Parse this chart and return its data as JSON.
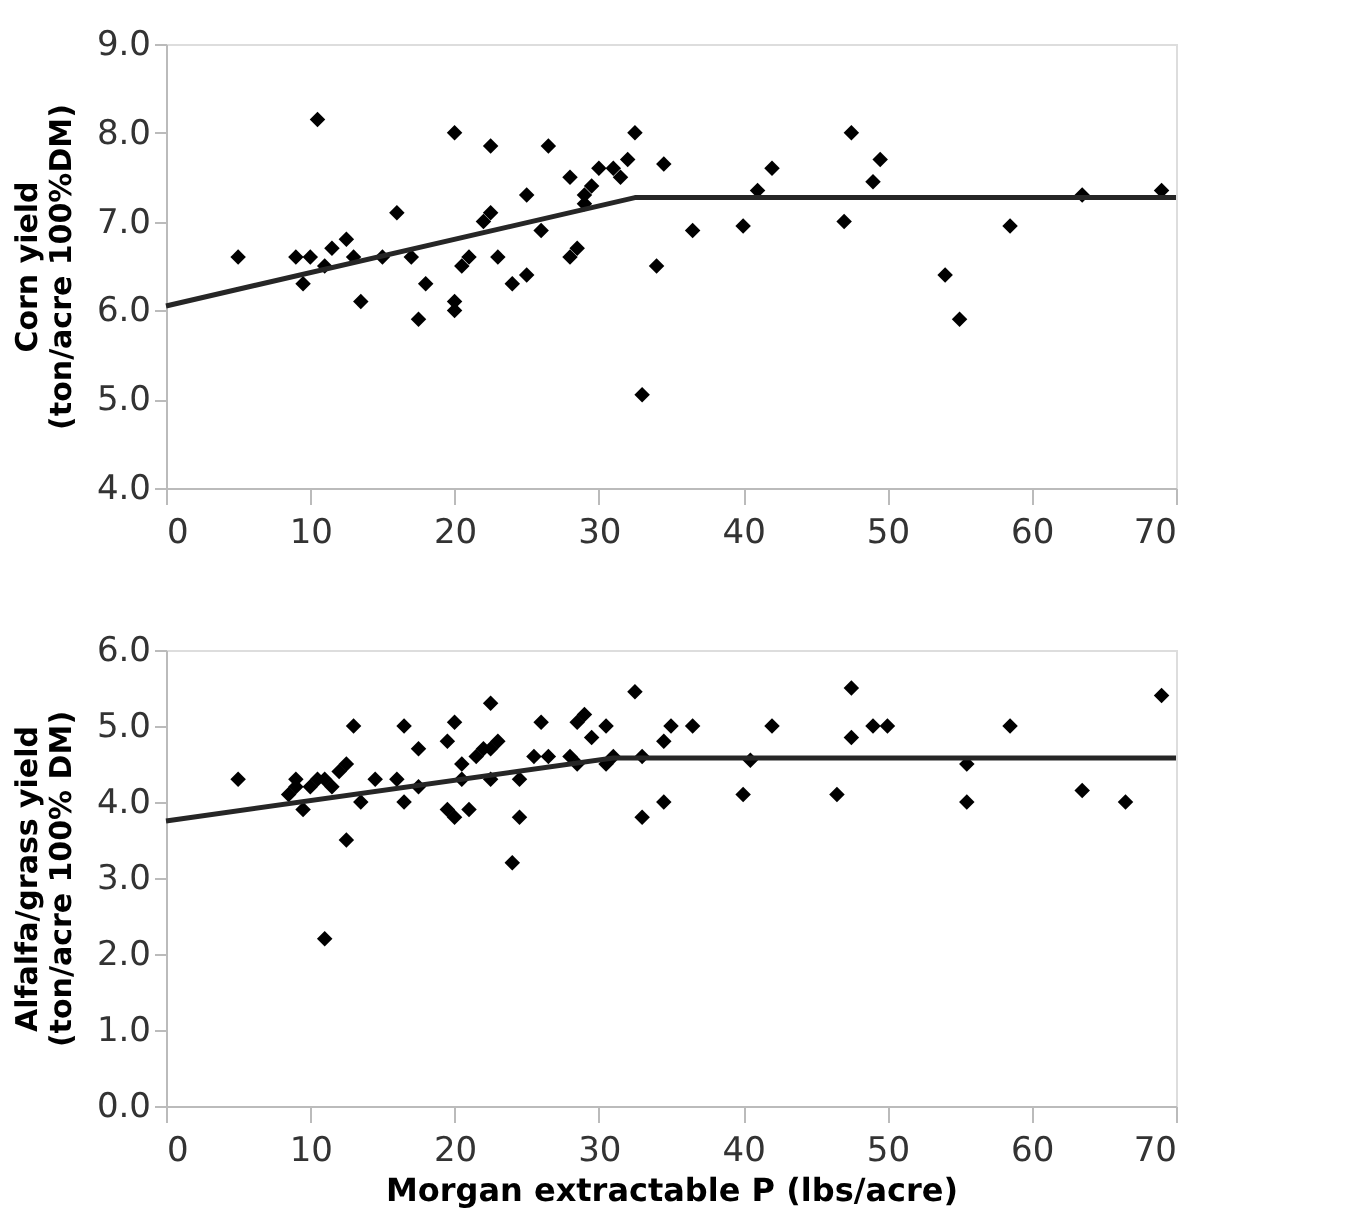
{
  "chart_data": [
    {
      "type": "scatter",
      "ylabel": "Corn yield\n(ton/acre 100%DM)",
      "xlim": [
        0,
        70
      ],
      "xticks": [
        0,
        10,
        20,
        30,
        40,
        50,
        60,
        70
      ],
      "ylim": [
        4.0,
        9.0
      ],
      "yticks": [
        {
          "value": 4,
          "label": "4.0"
        },
        {
          "value": 5,
          "label": "5.0"
        },
        {
          "value": 6,
          "label": "6.0"
        },
        {
          "value": 7,
          "label": "7.0"
        },
        {
          "value": 8,
          "label": "8.0"
        },
        {
          "value": 9,
          "label": "9.0"
        }
      ],
      "grid": false,
      "series": [
        {
          "marker": "diamond",
          "color": "#000000",
          "x": [
            5,
            9,
            9.5,
            10.5,
            10,
            11,
            11.5,
            12.5,
            13,
            13.5,
            15,
            16,
            17,
            17.5,
            18,
            20,
            20,
            20,
            20.5,
            21,
            22,
            22.5,
            22.5,
            23,
            24,
            25,
            25,
            26,
            26.5,
            28,
            28,
            28.5,
            29,
            29,
            29.5,
            30,
            31,
            31.5,
            32,
            32.5,
            33,
            34,
            34.5,
            36.5,
            40,
            41,
            42,
            47,
            47.5,
            49,
            49.5,
            54,
            55,
            58.5,
            63.5,
            69
          ],
          "values": [
            6.6,
            6.6,
            6.3,
            8.15,
            6.6,
            6.5,
            6.7,
            6.8,
            6.6,
            6.1,
            6.6,
            7.1,
            6.6,
            5.9,
            6.3,
            8.0,
            6.0,
            6.1,
            6.5,
            6.6,
            7.0,
            7.1,
            7.85,
            6.6,
            6.3,
            6.4,
            7.3,
            6.9,
            7.85,
            7.5,
            6.6,
            6.7,
            7.2,
            7.3,
            7.4,
            7.6,
            7.6,
            7.5,
            7.7,
            8.0,
            5.05,
            6.5,
            7.65,
            6.9,
            6.95,
            7.35,
            7.6,
            7.0,
            8.0,
            7.45,
            7.7,
            6.4,
            5.9,
            6.95,
            7.3,
            7.35
          ]
        },
        {
          "type": "line",
          "color": "#262626",
          "line_style": "solid",
          "x": [
            0,
            32.5,
            70
          ],
          "values": [
            6.05,
            7.27,
            7.27
          ]
        }
      ]
    },
    {
      "type": "scatter",
      "ylabel": "Alfalfa/grass yield\n(ton/acre 100% DM)",
      "xlabel": "Morgan extractable P (lbs/acre)",
      "xlim": [
        0,
        70
      ],
      "xticks": [
        0,
        10,
        20,
        30,
        40,
        50,
        60,
        70
      ],
      "ylim": [
        0.0,
        6.0
      ],
      "yticks": [
        {
          "value": 0,
          "label": "0.0"
        },
        {
          "value": 1,
          "label": "1.0"
        },
        {
          "value": 2,
          "label": "2.0"
        },
        {
          "value": 3,
          "label": "3.0"
        },
        {
          "value": 4,
          "label": "4.0"
        },
        {
          "value": 5,
          "label": "5.0"
        },
        {
          "value": 6,
          "label": "6.0"
        }
      ],
      "grid": false,
      "series": [
        {
          "marker": "diamond",
          "color": "#000000",
          "x": [
            5,
            8.5,
            9,
            9,
            9.5,
            10,
            10.5,
            11,
            11,
            11.5,
            12,
            12.5,
            12.5,
            13,
            13.5,
            14.5,
            16,
            16.5,
            16.5,
            17.5,
            17.5,
            19.5,
            19.5,
            20,
            20,
            20.5,
            20.5,
            21,
            21.5,
            22,
            22.5,
            22.5,
            23,
            22.5,
            24,
            24.5,
            24.5,
            25.5,
            26,
            26.5,
            28,
            28.5,
            28.5,
            29,
            29.5,
            30.5,
            30.5,
            31,
            32.5,
            33,
            33,
            34.5,
            34.5,
            35,
            36.5,
            40,
            40.5,
            42,
            46.5,
            47.5,
            47.5,
            49,
            50,
            55.5,
            55.5,
            58.5,
            63.5,
            66.5,
            69
          ],
          "values": [
            4.3,
            4.1,
            4.2,
            4.3,
            3.9,
            4.2,
            4.3,
            4.3,
            2.2,
            4.2,
            4.4,
            3.5,
            4.5,
            5.0,
            4.0,
            4.3,
            4.3,
            4.0,
            5.0,
            4.2,
            4.7,
            4.8,
            3.9,
            3.8,
            5.05,
            4.5,
            4.3,
            3.9,
            4.6,
            4.7,
            4.7,
            5.3,
            4.8,
            4.3,
            3.2,
            4.3,
            3.8,
            4.6,
            5.05,
            4.6,
            4.6,
            4.5,
            5.05,
            5.15,
            4.85,
            4.5,
            5.0,
            4.6,
            5.45,
            4.6,
            3.8,
            4.0,
            4.8,
            5.0,
            5.0,
            4.1,
            4.55,
            5.0,
            4.1,
            5.5,
            4.85,
            5.0,
            5.0,
            4.5,
            4.0,
            5.0,
            4.15,
            4.0,
            5.4
          ]
        },
        {
          "type": "line",
          "color": "#262626",
          "line_style": "solid",
          "x": [
            0,
            31,
            70
          ],
          "values": [
            3.75,
            4.58,
            4.58
          ]
        }
      ]
    }
  ]
}
